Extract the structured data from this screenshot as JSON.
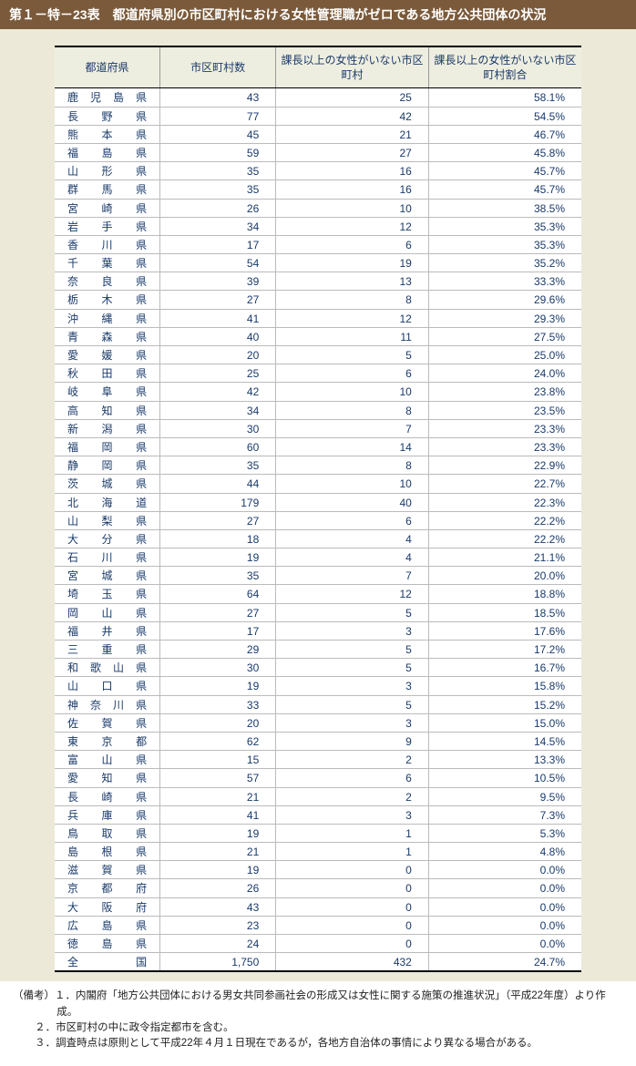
{
  "title": "第１－特－23表　都道府県別の市区町村における女性管理職がゼロである地方公共団体の状況",
  "columns": [
    "都道府県",
    "市区町村数",
    "課長以上の女性がいない市区町村",
    "課長以上の女性がいない市区町村割合"
  ],
  "rows": [
    [
      "鹿児島県",
      "43",
      "25",
      "58.1%"
    ],
    [
      "長野県",
      "77",
      "42",
      "54.5%"
    ],
    [
      "熊本県",
      "45",
      "21",
      "46.7%"
    ],
    [
      "福島県",
      "59",
      "27",
      "45.8%"
    ],
    [
      "山形県",
      "35",
      "16",
      "45.7%"
    ],
    [
      "群馬県",
      "35",
      "16",
      "45.7%"
    ],
    [
      "宮崎県",
      "26",
      "10",
      "38.5%"
    ],
    [
      "岩手県",
      "34",
      "12",
      "35.3%"
    ],
    [
      "香川県",
      "17",
      "6",
      "35.3%"
    ],
    [
      "千葉県",
      "54",
      "19",
      "35.2%"
    ],
    [
      "奈良県",
      "39",
      "13",
      "33.3%"
    ],
    [
      "栃木県",
      "27",
      "8",
      "29.6%"
    ],
    [
      "沖縄県",
      "41",
      "12",
      "29.3%"
    ],
    [
      "青森県",
      "40",
      "11",
      "27.5%"
    ],
    [
      "愛媛県",
      "20",
      "5",
      "25.0%"
    ],
    [
      "秋田県",
      "25",
      "6",
      "24.0%"
    ],
    [
      "岐阜県",
      "42",
      "10",
      "23.8%"
    ],
    [
      "高知県",
      "34",
      "8",
      "23.5%"
    ],
    [
      "新潟県",
      "30",
      "7",
      "23.3%"
    ],
    [
      "福岡県",
      "60",
      "14",
      "23.3%"
    ],
    [
      "静岡県",
      "35",
      "8",
      "22.9%"
    ],
    [
      "茨城県",
      "44",
      "10",
      "22.7%"
    ],
    [
      "北海道",
      "179",
      "40",
      "22.3%"
    ],
    [
      "山梨県",
      "27",
      "6",
      "22.2%"
    ],
    [
      "大分県",
      "18",
      "4",
      "22.2%"
    ],
    [
      "石川県",
      "19",
      "4",
      "21.1%"
    ],
    [
      "宮城県",
      "35",
      "7",
      "20.0%"
    ],
    [
      "埼玉県",
      "64",
      "12",
      "18.8%"
    ],
    [
      "岡山県",
      "27",
      "5",
      "18.5%"
    ],
    [
      "福井県",
      "17",
      "3",
      "17.6%"
    ],
    [
      "三重県",
      "29",
      "5",
      "17.2%"
    ],
    [
      "和歌山県",
      "30",
      "5",
      "16.7%"
    ],
    [
      "山口県",
      "19",
      "3",
      "15.8%"
    ],
    [
      "神奈川県",
      "33",
      "5",
      "15.2%"
    ],
    [
      "佐賀県",
      "20",
      "3",
      "15.0%"
    ],
    [
      "東京都",
      "62",
      "9",
      "14.5%"
    ],
    [
      "富山県",
      "15",
      "2",
      "13.3%"
    ],
    [
      "愛知県",
      "57",
      "6",
      "10.5%"
    ],
    [
      "長崎県",
      "21",
      "2",
      "9.5%"
    ],
    [
      "兵庫県",
      "41",
      "3",
      "7.3%"
    ],
    [
      "鳥取県",
      "19",
      "1",
      "5.3%"
    ],
    [
      "島根県",
      "21",
      "1",
      "4.8%"
    ],
    [
      "滋賀県",
      "19",
      "0",
      "0.0%"
    ],
    [
      "京都府",
      "26",
      "0",
      "0.0%"
    ],
    [
      "大阪府",
      "43",
      "0",
      "0.0%"
    ],
    [
      "広島県",
      "23",
      "0",
      "0.0%"
    ],
    [
      "徳島県",
      "24",
      "0",
      "0.0%"
    ]
  ],
  "total": [
    "全　国",
    "1,750",
    "432",
    "24.7%"
  ],
  "notes": [
    "（備考）１．内閣府「地方公共団体における男女共同参画社会の形成又は女性に関する施策の推進状況」（平成22年度）より作成。",
    "２．市区町村の中に政令指定都市を含む。",
    "３．調査時点は原則として平成22年４月１日現在であるが，各地方自治体の事情により異なる場合がある。"
  ]
}
